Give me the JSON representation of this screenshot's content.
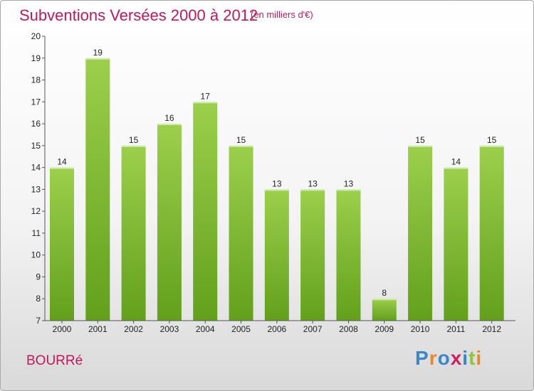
{
  "header": {
    "title": "Subventions Versées 2000 à 2012",
    "unit": "(en milliers d'€)"
  },
  "footer": {
    "place": "BOURRé",
    "logo_text": "Proxiti"
  },
  "colors": {
    "accent": "#c2185b",
    "bar_top": "#9ccf4c",
    "bar_bottom": "#62a01c",
    "logo": [
      "#3a86c8",
      "#e8882a",
      "#3a86c8",
      "#d02060",
      "#3a86c8",
      "#8cc43a",
      "#e8882a"
    ]
  },
  "chart_data": {
    "type": "bar",
    "title": "Subventions Versées 2000 à 2012",
    "subtitle": "(en milliers d'€)",
    "categories": [
      "2000",
      "2001",
      "2002",
      "2003",
      "2004",
      "2005",
      "2006",
      "2007",
      "2008",
      "2009",
      "2010",
      "2011",
      "2012"
    ],
    "values": [
      14,
      19,
      15,
      16,
      17,
      15,
      13,
      13,
      13,
      8,
      15,
      14,
      15
    ],
    "ylim": [
      7,
      20
    ],
    "yticks": [
      7,
      8,
      9,
      10,
      11,
      12,
      13,
      14,
      15,
      16,
      17,
      18,
      19,
      20
    ],
    "xlabel": "",
    "ylabel": "",
    "grid": false,
    "legend": "none"
  }
}
